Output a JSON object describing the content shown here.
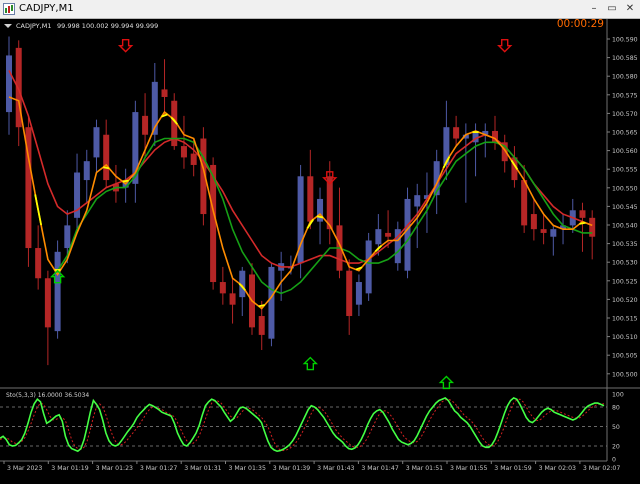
{
  "window": {
    "title": "CADJPY,M1",
    "minimize_glyph": "–",
    "restore_glyph": "▭",
    "close_glyph": "✕"
  },
  "chart_header": {
    "symbol_label": "CADJPY,M1",
    "ohlc_text": "99.998 100.002 99.994 99.999"
  },
  "timer": "00:00:29",
  "colors": {
    "background": "#000000",
    "bull_candle": "#4e5aa6",
    "bear_candle": "#b52626",
    "ma_fast": "#ff8c00",
    "ma_slow": "#d42a2a",
    "ma_green": "#16a016",
    "ma_turn": "#ffff00",
    "arrow_up": "#00d000",
    "arrow_down": "#dd1010",
    "stoch_main": "#44ff44",
    "stoch_signal": "#d22020",
    "axis_text": "#c8c8c8",
    "timer": "#ff6a00"
  },
  "price_axis": {
    "labels": [
      "100.590",
      "100.585",
      "100.580",
      "100.575",
      "100.570",
      "100.565",
      "100.560",
      "100.555",
      "100.550",
      "100.545",
      "100.540",
      "100.535",
      "100.530",
      "100.525",
      "100.520",
      "100.515",
      "100.510",
      "100.505",
      "100.500"
    ]
  },
  "time_axis": {
    "labels": [
      "3 Mar 2023",
      "3 Mar 01:19",
      "3 Mar 01:23",
      "3 Mar 01:27",
      "3 Mar 01:31",
      "3 Mar 01:35",
      "3 Mar 01:39",
      "3 Mar 01:43",
      "3 Mar 01:47",
      "3 Mar 01:51",
      "3 Mar 01:55",
      "3 Mar 01:59",
      "3 Mar 02:03",
      "3 Mar 02:07"
    ]
  },
  "oscillator": {
    "label": "Sto(5,3,3) 16.0000 36.5034",
    "levels": [
      "100",
      "80",
      "50",
      "20",
      "0"
    ]
  },
  "chart_data": {
    "type": "candlestick",
    "y_range": [
      100.5,
      100.594
    ],
    "candles": [
      {
        "o": 100.572,
        "h": 100.592,
        "l": 100.566,
        "c": 100.587
      },
      {
        "o": 100.589,
        "h": 100.591,
        "l": 100.563,
        "c": 100.568
      },
      {
        "o": 100.568,
        "h": 100.571,
        "l": 100.531,
        "c": 100.536
      },
      {
        "o": 100.536,
        "h": 100.542,
        "l": 100.525,
        "c": 100.528
      },
      {
        "o": 100.528,
        "h": 100.53,
        "l": 100.505,
        "c": 100.515
      },
      {
        "o": 100.514,
        "h": 100.538,
        "l": 100.512,
        "c": 100.535
      },
      {
        "o": 100.536,
        "h": 100.546,
        "l": 100.532,
        "c": 100.542
      },
      {
        "o": 100.544,
        "h": 100.561,
        "l": 100.54,
        "c": 100.556
      },
      {
        "o": 100.554,
        "h": 100.562,
        "l": 100.548,
        "c": 100.559
      },
      {
        "o": 100.56,
        "h": 100.57,
        "l": 100.556,
        "c": 100.568
      },
      {
        "o": 100.566,
        "h": 100.57,
        "l": 100.552,
        "c": 100.554
      },
      {
        "o": 100.553,
        "h": 100.558,
        "l": 100.548,
        "c": 100.551
      },
      {
        "o": 100.552,
        "h": 100.557,
        "l": 100.548,
        "c": 100.554
      },
      {
        "o": 100.553,
        "h": 100.575,
        "l": 100.548,
        "c": 100.572
      },
      {
        "o": 100.571,
        "h": 100.577,
        "l": 100.56,
        "c": 100.566
      },
      {
        "o": 100.566,
        "h": 100.585,
        "l": 100.563,
        "c": 100.58
      },
      {
        "o": 100.578,
        "h": 100.586,
        "l": 100.571,
        "c": 100.576
      },
      {
        "o": 100.575,
        "h": 100.577,
        "l": 100.562,
        "c": 100.563
      },
      {
        "o": 100.563,
        "h": 100.571,
        "l": 100.557,
        "c": 100.56
      },
      {
        "o": 100.561,
        "h": 100.565,
        "l": 100.555,
        "c": 100.558
      },
      {
        "o": 100.565,
        "h": 100.568,
        "l": 100.542,
        "c": 100.545
      },
      {
        "o": 100.558,
        "h": 100.56,
        "l": 100.525,
        "c": 100.527
      },
      {
        "o": 100.527,
        "h": 100.531,
        "l": 100.521,
        "c": 100.524
      },
      {
        "o": 100.524,
        "h": 100.528,
        "l": 100.516,
        "c": 100.521
      },
      {
        "o": 100.523,
        "h": 100.531,
        "l": 100.518,
        "c": 100.53
      },
      {
        "o": 100.529,
        "h": 100.532,
        "l": 100.513,
        "c": 100.515
      },
      {
        "o": 100.518,
        "h": 100.522,
        "l": 100.509,
        "c": 100.513
      },
      {
        "o": 100.512,
        "h": 100.532,
        "l": 100.51,
        "c": 100.531
      },
      {
        "o": 100.53,
        "h": 100.535,
        "l": 100.522,
        "c": 100.532
      },
      {
        "o": 100.531,
        "h": 100.534,
        "l": 100.529,
        "c": 100.531
      },
      {
        "o": 100.532,
        "h": 100.558,
        "l": 100.528,
        "c": 100.555
      },
      {
        "o": 100.555,
        "h": 100.562,
        "l": 100.541,
        "c": 100.543
      },
      {
        "o": 100.543,
        "h": 100.552,
        "l": 100.537,
        "c": 100.549
      },
      {
        "o": 100.555,
        "h": 100.559,
        "l": 100.537,
        "c": 100.541
      },
      {
        "o": 100.542,
        "h": 100.552,
        "l": 100.528,
        "c": 100.53
      },
      {
        "o": 100.53,
        "h": 100.533,
        "l": 100.513,
        "c": 100.518
      },
      {
        "o": 100.521,
        "h": 100.529,
        "l": 100.518,
        "c": 100.527
      },
      {
        "o": 100.524,
        "h": 100.54,
        "l": 100.522,
        "c": 100.538
      },
      {
        "o": 100.537,
        "h": 100.545,
        "l": 100.534,
        "c": 100.541
      },
      {
        "o": 100.54,
        "h": 100.546,
        "l": 100.536,
        "c": 100.539
      },
      {
        "o": 100.532,
        "h": 100.543,
        "l": 100.53,
        "c": 100.541
      },
      {
        "o": 100.53,
        "h": 100.552,
        "l": 100.528,
        "c": 100.549
      },
      {
        "o": 100.547,
        "h": 100.553,
        "l": 100.536,
        "c": 100.55
      },
      {
        "o": 100.549,
        "h": 100.556,
        "l": 100.54,
        "c": 100.55
      },
      {
        "o": 100.55,
        "h": 100.562,
        "l": 100.545,
        "c": 100.559
      },
      {
        "o": 100.558,
        "h": 100.575,
        "l": 100.554,
        "c": 100.568
      },
      {
        "o": 100.568,
        "h": 100.571,
        "l": 100.563,
        "c": 100.565
      },
      {
        "o": 100.565,
        "h": 100.569,
        "l": 100.548,
        "c": 100.566
      },
      {
        "o": 100.564,
        "h": 100.569,
        "l": 100.555,
        "c": 100.567
      },
      {
        "o": 100.566,
        "h": 100.569,
        "l": 100.56,
        "c": 100.567
      },
      {
        "o": 100.567,
        "h": 100.571,
        "l": 100.562,
        "c": 100.564
      },
      {
        "o": 100.564,
        "h": 100.566,
        "l": 100.556,
        "c": 100.559
      },
      {
        "o": 100.56,
        "h": 100.563,
        "l": 100.552,
        "c": 100.554
      },
      {
        "o": 100.554,
        "h": 100.558,
        "l": 100.54,
        "c": 100.542
      },
      {
        "o": 100.545,
        "h": 100.549,
        "l": 100.538,
        "c": 100.541
      },
      {
        "o": 100.541,
        "h": 100.545,
        "l": 100.537,
        "c": 100.54
      },
      {
        "o": 100.539,
        "h": 100.542,
        "l": 100.534,
        "c": 100.541
      },
      {
        "o": 100.541,
        "h": 100.545,
        "l": 100.537,
        "c": 100.542
      },
      {
        "o": 100.542,
        "h": 100.549,
        "l": 100.54,
        "c": 100.546
      },
      {
        "o": 100.546,
        "h": 100.548,
        "l": 100.535,
        "c": 100.544
      },
      {
        "o": 100.544,
        "h": 100.546,
        "l": 100.533,
        "c": 100.539
      }
    ],
    "ma_red": [
      100.583,
      100.578,
      100.571,
      100.562,
      100.553,
      100.547,
      100.545,
      100.546,
      100.548,
      100.55,
      100.552,
      100.553,
      100.554,
      100.556,
      100.559,
      100.562,
      100.564,
      100.565,
      100.564,
      100.562,
      100.559,
      100.555,
      100.551,
      100.546,
      100.542,
      100.538,
      100.534,
      100.532,
      100.531,
      100.531,
      100.532,
      100.533,
      100.534,
      100.534,
      100.533,
      100.532,
      100.532,
      100.533,
      100.535,
      100.537,
      100.539,
      100.542,
      100.545,
      100.549,
      100.553,
      100.557,
      100.561,
      100.563,
      100.565,
      100.566,
      100.565,
      100.563,
      100.56,
      100.557,
      100.553,
      100.55,
      100.547,
      100.545,
      100.544,
      100.543,
      100.542
    ],
    "ma_orange": [
      100.576,
      100.575,
      100.56,
      100.546,
      100.533,
      100.529,
      100.533,
      100.54,
      100.546,
      100.556,
      100.558,
      100.555,
      100.553,
      100.556,
      100.562,
      100.568,
      100.572,
      100.57,
      100.566,
      100.565,
      100.557,
      100.546,
      100.536,
      100.528,
      100.526,
      100.522,
      100.52,
      100.523,
      100.527,
      100.53,
      100.537,
      100.543,
      100.545,
      100.542,
      100.537,
      100.531,
      100.53,
      100.533,
      100.536,
      100.538,
      100.538,
      100.541,
      100.544,
      100.548,
      100.553,
      100.559,
      100.563,
      100.566,
      100.567,
      100.566,
      100.565,
      100.562,
      100.558,
      100.554,
      100.549,
      100.545,
      100.542,
      100.541,
      100.541,
      100.543,
      100.542
    ],
    "ma_green": [
      null,
      null,
      null,
      null,
      null,
      100.53,
      100.534,
      100.541,
      100.545,
      100.549,
      100.551,
      100.552,
      100.552,
      100.555,
      100.56,
      100.564,
      100.565,
      100.565,
      100.565,
      100.564,
      100.56,
      100.555,
      100.549,
      100.541,
      100.535,
      100.531,
      100.527,
      100.525,
      100.524,
      100.525,
      100.527,
      100.53,
      100.533,
      100.536,
      100.536,
      100.535,
      100.533,
      100.532,
      100.532,
      100.533,
      100.535,
      100.538,
      100.542,
      100.546,
      100.551,
      100.555,
      100.559,
      100.561,
      100.563,
      100.564,
      100.564,
      100.563,
      100.56,
      100.557,
      100.553,
      100.549,
      100.545,
      100.542,
      100.541,
      100.54,
      100.54
    ],
    "arrows_up": [
      {
        "i": 5,
        "p": 100.53
      },
      {
        "i": 31,
        "p": 100.507
      },
      {
        "i": 45,
        "p": 100.502
      }
    ],
    "arrows_down": [
      {
        "i": 12,
        "p": 100.588
      },
      {
        "i": 33,
        "p": 100.553
      },
      {
        "i": 51,
        "p": 100.588
      }
    ],
    "stoch_main": [
      32,
      35,
      30,
      22,
      20,
      21,
      25,
      30,
      40,
      55,
      72,
      85,
      92,
      88,
      70,
      55,
      58,
      62,
      66,
      68,
      58,
      35,
      22,
      16,
      14,
      12,
      16,
      30,
      50,
      72,
      90,
      84,
      76,
      60,
      40,
      28,
      22,
      20,
      22,
      28,
      35,
      42,
      48,
      55,
      64,
      70,
      75,
      80,
      84,
      82,
      79,
      76,
      72,
      70,
      68,
      66,
      55,
      40,
      30,
      22,
      20,
      25,
      32,
      40,
      52,
      68,
      82,
      88,
      92,
      90,
      85,
      80,
      72,
      65,
      58,
      62,
      70,
      78,
      80,
      78,
      74,
      70,
      66,
      62,
      56,
      42,
      28,
      18,
      14,
      12,
      13,
      15,
      18,
      22,
      28,
      36,
      46,
      56,
      66,
      76,
      82,
      80,
      76,
      70,
      64,
      56,
      48,
      40,
      34,
      30,
      26,
      20,
      16,
      15,
      17,
      22,
      30,
      40,
      52,
      62,
      70,
      74,
      76,
      72,
      64,
      56,
      46,
      38,
      30,
      26,
      24,
      22,
      24,
      28,
      36,
      46,
      56,
      66,
      74,
      80,
      86,
      90,
      92,
      94,
      90,
      82,
      74,
      70,
      64,
      60,
      56,
      50,
      42,
      34,
      26,
      20,
      18,
      18,
      22,
      30,
      42,
      56,
      70,
      82,
      90,
      94,
      92,
      84,
      74,
      64,
      58,
      56,
      60,
      66,
      72,
      76,
      78,
      76,
      72,
      70,
      68,
      66,
      64,
      62,
      60,
      62,
      66,
      72,
      78,
      82,
      84,
      86,
      86,
      84,
      82
    ],
    "stoch_signal": [
      30,
      32,
      33,
      30,
      26,
      24,
      24,
      27,
      33,
      43,
      55,
      68,
      80,
      86,
      84,
      76,
      66,
      60,
      61,
      63,
      64,
      59,
      45,
      30,
      20,
      16,
      15,
      18,
      28,
      45,
      65,
      80,
      85,
      80,
      68,
      52,
      38,
      28,
      22,
      22,
      25,
      30,
      36,
      42,
      48,
      55,
      62,
      70,
      76,
      80,
      80,
      78,
      76,
      73,
      70,
      68,
      65,
      56,
      46,
      36,
      28,
      24,
      24,
      28,
      36,
      48,
      62,
      76,
      86,
      90,
      89,
      86,
      80,
      73,
      66,
      62,
      63,
      68,
      74,
      78,
      78,
      76,
      72,
      68,
      64,
      58,
      50,
      38,
      26,
      18,
      14,
      13,
      14,
      16,
      20,
      25,
      32,
      40,
      50,
      60,
      70,
      78,
      80,
      78,
      74,
      68,
      60,
      52,
      44,
      38,
      32,
      28,
      24,
      20,
      18,
      18,
      20,
      25,
      32,
      42,
      52,
      62,
      70,
      74,
      74,
      70,
      64,
      56,
      48,
      40,
      33,
      29,
      26,
      25,
      27,
      32,
      40,
      50,
      60,
      68,
      76,
      82,
      88,
      91,
      92,
      90,
      86,
      80,
      74,
      68,
      64,
      60,
      55,
      48,
      40,
      32,
      26,
      22,
      20,
      22,
      28,
      38,
      50,
      64,
      76,
      86,
      91,
      92,
      88,
      80,
      72,
      65,
      60,
      59,
      62,
      67,
      71,
      74,
      75,
      74,
      72,
      70,
      68,
      66,
      64,
      63,
      63,
      66,
      70,
      75,
      79,
      82,
      84,
      85,
      85
    ]
  }
}
